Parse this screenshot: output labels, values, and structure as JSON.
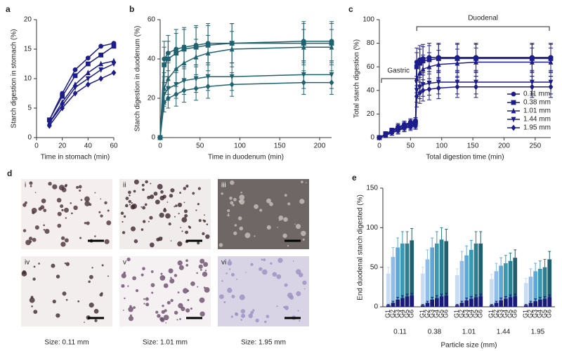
{
  "chart_data": [
    {
      "type": "line",
      "panel": "a",
      "xlabel": "Time in stomach  (min)",
      "ylabel": "Starch digestion in stomach (%)",
      "x": [
        10,
        20,
        30,
        40,
        50,
        60
      ],
      "xlim": [
        0,
        60
      ],
      "xticks": [
        0,
        20,
        40,
        60
      ],
      "ylim": [
        0,
        20
      ],
      "yticks": [
        0,
        5,
        10,
        15,
        20
      ],
      "series": [
        {
          "color": "#1c1c8a",
          "marker": "circle",
          "values": [
            3,
            7.5,
            11.5,
            13.5,
            15.5,
            16
          ]
        },
        {
          "color": "#1c1c8a",
          "marker": "square",
          "values": [
            3,
            7,
            10.5,
            12.5,
            14,
            15.5
          ]
        },
        {
          "color": "#1c1c8a",
          "marker": "triangle-up",
          "values": [
            2.5,
            6,
            9,
            11,
            12.5,
            13
          ]
        },
        {
          "color": "#1c1c8a",
          "marker": "triangle-down",
          "values": [
            2.5,
            5.5,
            8.5,
            10,
            11.5,
            12.5
          ]
        },
        {
          "color": "#1c1c8a",
          "marker": "diamond",
          "values": [
            2,
            5,
            7.5,
            9,
            10,
            11
          ]
        }
      ]
    },
    {
      "type": "line",
      "panel": "b",
      "xlabel": "Time in duodenum (min)",
      "ylabel": "Starch digestion in duodenum (%)",
      "x": [
        0,
        5,
        10,
        20,
        30,
        45,
        60,
        90,
        180,
        215
      ],
      "xlim": [
        0,
        215
      ],
      "xticks": [
        0,
        50,
        100,
        150,
        200
      ],
      "ylim": [
        0,
        60
      ],
      "yticks": [
        0,
        20,
        40,
        60
      ],
      "series": [
        {
          "color": "#1f6270",
          "marker": "circle",
          "values": [
            0,
            40,
            43,
            45,
            46,
            47,
            48,
            48,
            49,
            49
          ],
          "errors": [
            0,
            9,
            9,
            10,
            10,
            10,
            10,
            10,
            10,
            10
          ]
        },
        {
          "color": "#1f6270",
          "marker": "square",
          "values": [
            0,
            37,
            40,
            43,
            45,
            46,
            47,
            48,
            48,
            48
          ],
          "errors": [
            0,
            9,
            9,
            10,
            10,
            10,
            10,
            10,
            10,
            10
          ]
        },
        {
          "color": "#1f6270",
          "marker": "triangle-up",
          "values": [
            0,
            25,
            30,
            35,
            38,
            41,
            43,
            45,
            46,
            46
          ],
          "errors": [
            0,
            8,
            8,
            9,
            9,
            9,
            9,
            9,
            9,
            9
          ]
        },
        {
          "color": "#1f6270",
          "marker": "triangle-down",
          "values": [
            0,
            22,
            25,
            27,
            29,
            30,
            31,
            31,
            32,
            32
          ],
          "errors": [
            0,
            6,
            6,
            7,
            7,
            7,
            7,
            7,
            7,
            7
          ]
        },
        {
          "color": "#1f6270",
          "marker": "diamond",
          "values": [
            0,
            18,
            20,
            22,
            24,
            25,
            26,
            27,
            28,
            28
          ],
          "errors": [
            0,
            5,
            5,
            6,
            6,
            6,
            6,
            6,
            6,
            6
          ]
        }
      ]
    },
    {
      "type": "line",
      "panel": "c",
      "xlabel": "Total digestion time (min)",
      "ylabel": "Total starch digestion (%)",
      "annotations": [
        "Gastric",
        "Duodenal"
      ],
      "legend": "lower right",
      "x": [
        0,
        10,
        20,
        30,
        40,
        50,
        58,
        60,
        65,
        70,
        80,
        95,
        125,
        155,
        245,
        275
      ],
      "xlim": [
        0,
        275
      ],
      "xticks": [
        0,
        50,
        100,
        150,
        200,
        250
      ],
      "ylim": [
        0,
        100
      ],
      "yticks": [
        0,
        20,
        40,
        60,
        80,
        100
      ],
      "series": [
        {
          "name": "0.11 mm",
          "color": "#1c1c8a",
          "marker": "circle",
          "values": [
            0,
            3,
            6,
            9,
            11,
            13,
            14,
            64,
            66,
            67,
            68,
            68,
            68,
            68,
            68,
            68
          ],
          "errors": [
            0,
            2,
            2,
            3,
            3,
            3,
            3,
            12,
            12,
            12,
            12,
            12,
            12,
            12,
            12,
            12
          ]
        },
        {
          "name": "0.38 mm",
          "color": "#1c1c8a",
          "marker": "square",
          "values": [
            0,
            3,
            6,
            8,
            10,
            12,
            13,
            60,
            63,
            65,
            66,
            67,
            67,
            67,
            67,
            67
          ],
          "errors": [
            0,
            2,
            2,
            3,
            3,
            3,
            3,
            12,
            12,
            12,
            12,
            12,
            12,
            12,
            12,
            12
          ]
        },
        {
          "name": "1.01 mm",
          "color": "#1c1c8a",
          "marker": "triangle-up",
          "values": [
            0,
            2,
            5,
            7,
            9,
            11,
            12,
            50,
            55,
            58,
            60,
            62,
            63,
            64,
            64,
            64
          ],
          "errors": [
            0,
            2,
            2,
            3,
            3,
            3,
            3,
            12,
            12,
            12,
            12,
            12,
            12,
            12,
            12,
            12
          ]
        },
        {
          "name": "1.44 mm",
          "color": "#1c1c8a",
          "marker": "triangle-down",
          "values": [
            0,
            2,
            4,
            6,
            8,
            10,
            11,
            40,
            43,
            45,
            46,
            47,
            47,
            47,
            47,
            47
          ],
          "errors": [
            0,
            2,
            2,
            3,
            3,
            3,
            3,
            10,
            10,
            10,
            10,
            10,
            10,
            10,
            10,
            10
          ]
        },
        {
          "name": "1.95 mm",
          "color": "#1c1c8a",
          "marker": "diamond",
          "values": [
            0,
            2,
            4,
            6,
            8,
            9,
            10,
            35,
            38,
            40,
            41,
            42,
            43,
            43,
            43,
            43
          ],
          "errors": [
            0,
            2,
            2,
            3,
            3,
            3,
            3,
            9,
            9,
            9,
            9,
            9,
            9,
            9,
            9,
            9
          ]
        }
      ]
    },
    {
      "type": "bar",
      "panel": "e",
      "xlabel": "Particle size (mm)",
      "ylabel": "End duodenal starch digested (%)",
      "categories": [
        "0.11",
        "0.38",
        "1.01",
        "1.44",
        "1.95"
      ],
      "ylim": [
        0,
        150
      ],
      "yticks": [
        0,
        50,
        100,
        150
      ],
      "gastric_color": "#1a1a7a",
      "series": [
        {
          "name": "G1",
          "color": "#c9dcf2",
          "values": [
            42,
            42,
            40,
            35,
            30
          ],
          "errors": [
            8,
            8,
            8,
            6,
            6
          ],
          "gastric_values": [
            2,
            2,
            2,
            2,
            2
          ],
          "gastric_errors": [
            1,
            1,
            1,
            1,
            1
          ]
        },
        {
          "name": "G2",
          "color": "#8fbde8",
          "values": [
            63,
            60,
            58,
            45,
            38
          ],
          "errors": [
            12,
            12,
            12,
            10,
            10
          ],
          "gastric_values": [
            5,
            5,
            5,
            5,
            5
          ],
          "gastric_errors": [
            2,
            2,
            2,
            2,
            2
          ]
        },
        {
          "name": "G3",
          "color": "#5ea8d8",
          "values": [
            75,
            75,
            65,
            52,
            45
          ],
          "errors": [
            12,
            12,
            12,
            10,
            10
          ],
          "gastric_values": [
            9,
            9,
            8,
            8,
            7
          ],
          "gastric_errors": [
            3,
            3,
            3,
            3,
            3
          ]
        },
        {
          "name": "G4",
          "color": "#3a98b0",
          "values": [
            80,
            80,
            72,
            55,
            48
          ],
          "errors": [
            15,
            15,
            12,
            10,
            10
          ],
          "gastric_values": [
            11,
            11,
            10,
            10,
            9
          ],
          "gastric_errors": [
            3,
            3,
            3,
            3,
            3
          ]
        },
        {
          "name": "G5",
          "color": "#2a8090",
          "values": [
            80,
            85,
            80,
            58,
            50
          ],
          "errors": [
            15,
            15,
            15,
            10,
            10
          ],
          "gastric_values": [
            13,
            13,
            12,
            12,
            10
          ],
          "gastric_errors": [
            3,
            3,
            3,
            3,
            3
          ]
        },
        {
          "name": "G6",
          "color": "#1f5f6e",
          "values": [
            84,
            83,
            80,
            62,
            60
          ],
          "errors": [
            15,
            15,
            15,
            10,
            10
          ],
          "gastric_values": [
            14,
            14,
            13,
            13,
            12
          ],
          "gastric_errors": [
            3,
            3,
            3,
            3,
            3
          ]
        }
      ]
    }
  ],
  "micrographs": {
    "panel": "d",
    "labels": [
      "i",
      "ii",
      "iii",
      "iv",
      "v",
      "vi"
    ],
    "captions": [
      "Size: 0.11 mm",
      "Size: 1.01 mm",
      "Size: 1.95 mm"
    ]
  }
}
